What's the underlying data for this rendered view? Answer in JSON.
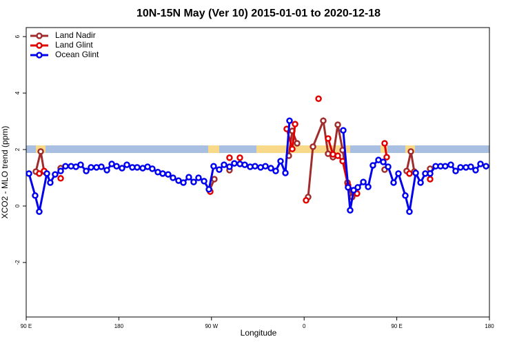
{
  "chart_data": {
    "type": "line",
    "title": "10N-15N May (Ver 10)   2015-01-01 to 2020-12-18",
    "x_label": "Longitude",
    "y_label": "XCO2 - MLO trend (ppm)",
    "xlim": [
      90,
      540
    ],
    "ylim": [
      -3.93,
      6.32
    ],
    "xticks": [
      {
        "value": 90,
        "label": "90 E"
      },
      180,
      {
        "value": 270,
        "label": "90 W"
      },
      {
        "value": 360,
        "label": "0"
      },
      {
        "value": 450,
        "label": "90 E"
      },
      {
        "value": 540,
        "label": "180"
      }
    ],
    "yticks": [
      -2,
      0,
      2,
      4,
      6
    ],
    "legend": "top-left",
    "series": [
      {
        "name": "Land Nadir",
        "color": "#a02c2c",
        "x": [
          99.4,
          104.1,
          107.4,
          null,
          123.5,
          null,
          268.1,
          272.8,
          null,
          287.5,
          null,
          345.1,
          348.5,
          353.2,
          null,
          363.9,
          368.6,
          378.6,
          383.3,
          388,
          392.7,
          397.4,
          402.1,
          406.7,
          null,
          438.2,
          null,
          459.6,
          463.7,
          467,
          null,
          482.4
        ],
        "values": [
          1.22,
          1.93,
          1.22,
          null,
          1.34,
          null,
          0.56,
          0.95,
          null,
          1.27,
          null,
          1.78,
          2.66,
          2.22,
          null,
          0.32,
          2.1,
          3.02,
          1.85,
          1.73,
          2.88,
          1.98,
          0.83,
          0.32,
          null,
          1.29,
          null,
          1.24,
          1.93,
          1.22,
          null,
          1.32
        ]
      },
      {
        "name": "Land Glint",
        "color": "#e00000",
        "x": [
          102.7,
          107.4,
          null,
          123.5,
          null,
          268.8,
          null,
          287.5,
          null,
          297.6,
          null,
          343.1,
          348.5,
          351.2,
          null,
          361.9,
          null,
          374,
          null,
          383.3,
          388,
          392.7,
          397.4,
          402.7,
          411.4,
          null,
          438.2,
          440.2,
          null,
          462.3,
          null,
          482.4
        ],
        "values": [
          1.15,
          1.24,
          null,
          0.98,
          null,
          0.51,
          null,
          1.71,
          null,
          1.71,
          null,
          2.73,
          2.02,
          2.9,
          null,
          0.2,
          null,
          3.8,
          null,
          2.39,
          1.83,
          1.78,
          1.59,
          0.73,
          0.44,
          null,
          2.22,
          1.73,
          null,
          1.15,
          null,
          0.95
        ]
      },
      {
        "name": "Ocean Glint",
        "color": "#0000ee",
        "x": [
          92.7,
          98.7,
          102.7,
          110.1,
          113.4,
          118.1,
          123.5,
          128.2,
          133.6,
          138.3,
          142.9,
          148.3,
          153,
          158.3,
          163,
          168.4,
          173.1,
          177.8,
          183.1,
          187.8,
          193.1,
          197.8,
          203.2,
          207.9,
          212.5,
          217.9,
          222.6,
          227.9,
          232.6,
          238,
          242.7,
          248,
          252.7,
          257.4,
          262.8,
          267.5,
          272.1,
          277.5,
          282.2,
          287.5,
          292.2,
          297.6,
          302.3,
          307.6,
          312.3,
          317.7,
          322.4,
          327.7,
          332.4,
          337.1,
          341.8,
          345.8,
          null,
          398,
          402.7,
          404.7,
          408.1,
          412.1,
          417.5,
          422.2,
          426.8,
          432.2,
          436.9,
          441.6,
          446.9,
          451.6,
          458.3,
          462.3,
          468.4,
          473.1,
          477.7,
          482.4,
          487.8,
          492.5,
          497.1,
          502.5,
          507.2,
          511.9,
          517.2,
          521.9,
          526.6,
          531.3,
          536.7
        ],
        "values": [
          1.15,
          0.37,
          -0.2,
          1.15,
          0.83,
          1.12,
          1.24,
          1.41,
          1.41,
          1.39,
          1.46,
          1.24,
          1.37,
          1.37,
          1.39,
          1.27,
          1.49,
          1.41,
          1.34,
          1.46,
          1.37,
          1.37,
          1.34,
          1.39,
          1.32,
          1.2,
          1.15,
          1.12,
          1.0,
          0.9,
          0.83,
          1.02,
          0.85,
          1.0,
          0.88,
          0.59,
          1.41,
          1.29,
          1.46,
          1.39,
          1.51,
          1.49,
          1.46,
          1.39,
          1.41,
          1.37,
          1.41,
          1.34,
          1.24,
          1.59,
          1.17,
          3.02,
          null,
          2.68,
          0.66,
          -0.15,
          0.56,
          0.66,
          0.85,
          0.68,
          1.44,
          1.63,
          1.56,
          1.39,
          0.83,
          1.15,
          0.37,
          -0.2,
          1.17,
          0.83,
          1.15,
          1.15,
          1.41,
          1.41,
          1.41,
          1.46,
          1.24,
          1.37,
          1.37,
          1.39,
          1.27,
          1.49,
          1.41
        ]
      }
    ]
  }
}
